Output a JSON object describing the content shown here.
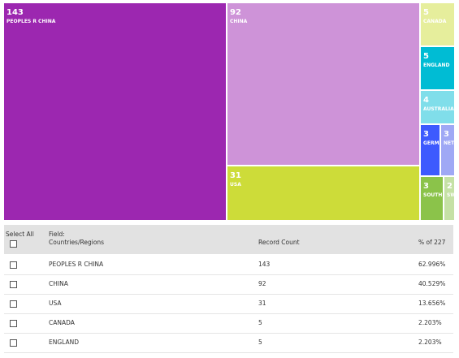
{
  "chart_data": {
    "type": "treemap",
    "categories": [
      "PEOPLES R CHINA",
      "CHINA",
      "USA",
      "CANADA",
      "ENGLAND",
      "AUSTRALIA",
      "GERMANY",
      "NETHERLANDS",
      "SOUTH KOREA",
      "SWITZERLAND"
    ],
    "values": [
      143,
      92,
      31,
      5,
      5,
      4,
      3,
      3,
      3,
      2
    ],
    "colors": [
      "#9c27b0",
      "#ce93d8",
      "#cddc39",
      "#e6ee9c",
      "#00bcd4",
      "#80deea",
      "#3d5afe",
      "#9fa8f5",
      "#8bc34a",
      "#c5e1a5"
    ]
  },
  "table": {
    "headers": {
      "select_all": "Select All",
      "field": "Field:",
      "field_name": "Countries/Regions",
      "count": "Record Count",
      "percent": "% of 227"
    },
    "rows": [
      [
        "PEOPLES R CHINA",
        "143",
        "62.996%"
      ],
      [
        "CHINA",
        "92",
        "40.529%"
      ],
      [
        "USA",
        "31",
        "13.656%"
      ],
      [
        "CANADA",
        "5",
        "2.203%"
      ],
      [
        "ENGLAND",
        "5",
        "2.203%"
      ]
    ]
  }
}
